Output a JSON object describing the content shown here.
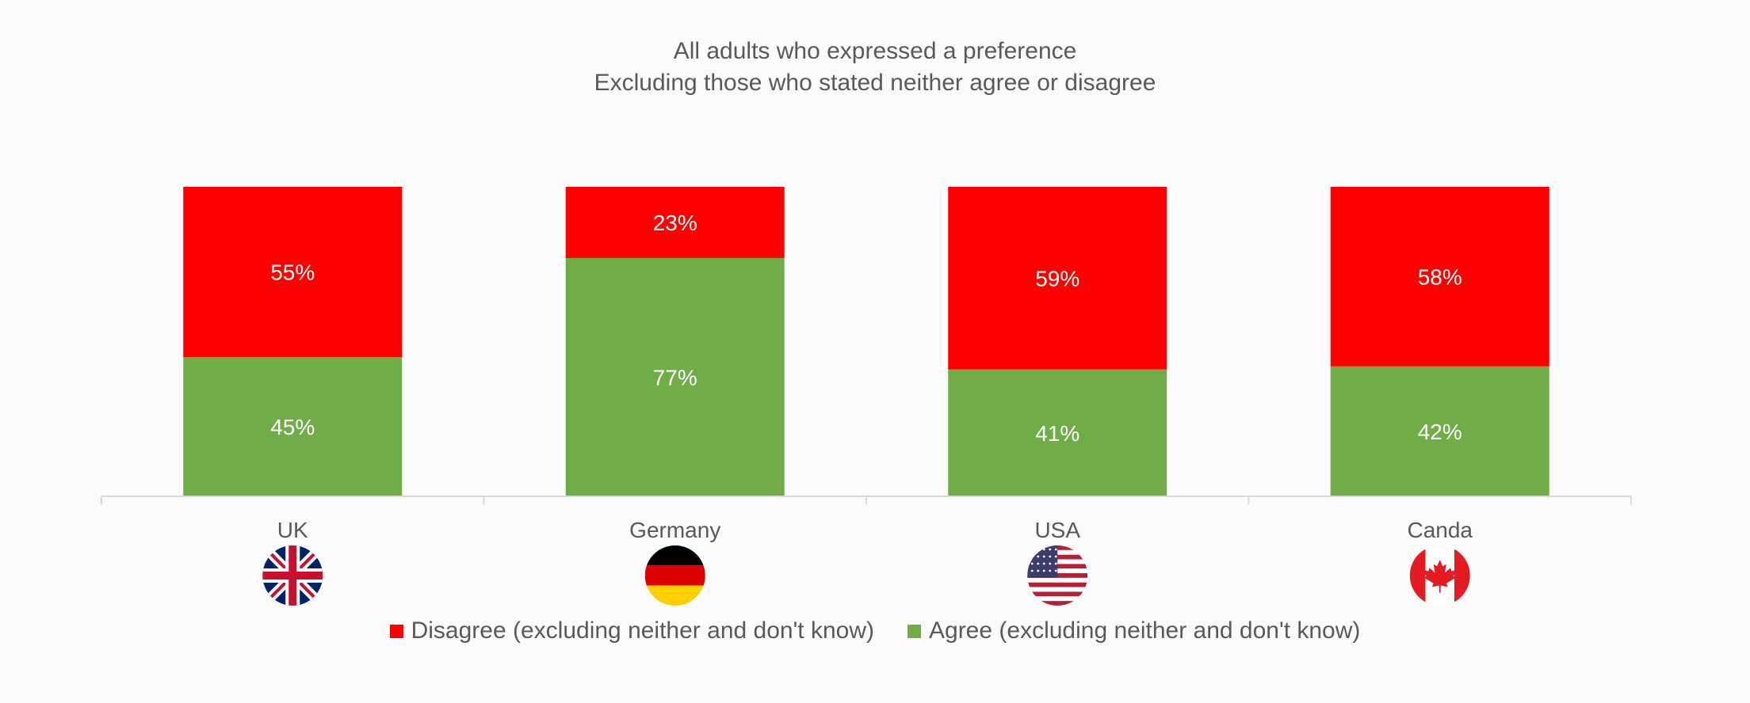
{
  "chart_data": {
    "type": "bar",
    "stacked": true,
    "title": "All adults who expressed a preference",
    "subtitle": "Excluding those who stated neither agree or disagree",
    "categories": [
      "UK",
      "Germany",
      "USA",
      "Canda"
    ],
    "series": [
      {
        "name": "Agree (excluding neither and don't know)",
        "color": "#70ad47",
        "values": [
          45,
          77,
          41,
          42
        ]
      },
      {
        "name": "Disagree (excluding neither and don't know)",
        "color": "#ff0000",
        "values": [
          55,
          23,
          59,
          58
        ]
      }
    ],
    "data_labels": {
      "Agree": [
        "45%",
        "77%",
        "41%",
        "42%"
      ],
      "Disagree": [
        "55%",
        "23%",
        "59%",
        "58%"
      ]
    },
    "ylim": [
      0,
      100
    ],
    "grid": false,
    "legend_position": "bottom",
    "legend_order": [
      "Disagree (excluding neither and don't know)",
      "Agree (excluding neither and don't know)"
    ],
    "flags": [
      "uk-flag-icon",
      "germany-flag-icon",
      "usa-flag-icon",
      "canada-flag-icon"
    ]
  }
}
